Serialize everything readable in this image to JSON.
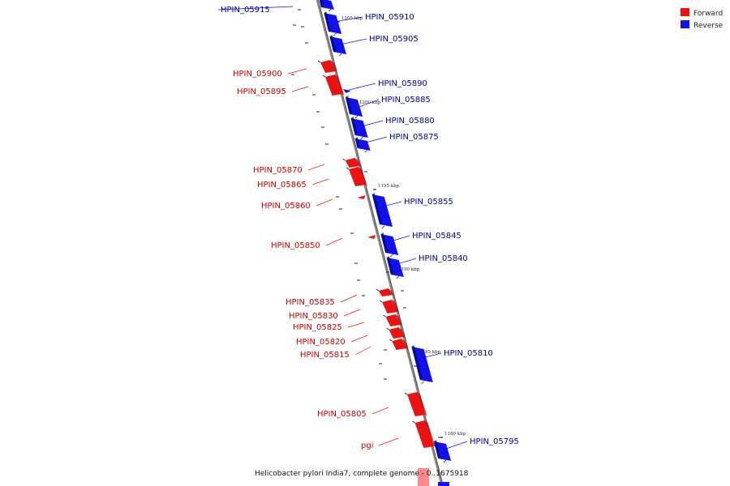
{
  "legend": [
    {
      "label": "Forward",
      "color": "#ee1111"
    },
    {
      "label": "Reverse",
      "color": "#1111ee"
    }
  ],
  "caption": "Helicobacter pylori India7, complete genome - 0..1675918",
  "colors": {
    "forward": "#ee1111",
    "reverse": "#1111ee",
    "backbone": "#888888",
    "forward_label": "#cc0000",
    "reverse_label": "#000099"
  },
  "ticks": [
    "1205 kbp",
    "1200 kbp",
    "1195 kbp",
    "1190 kbp",
    "1185 kbp",
    "1180 kbp"
  ],
  "genes": [
    {
      "name": "HPIN_05915",
      "strand": "reverse"
    },
    {
      "name": "HPIN_05910",
      "strand": "reverse"
    },
    {
      "name": "HPIN_05905",
      "strand": "reverse"
    },
    {
      "name": "HPIN_05900",
      "strand": "forward"
    },
    {
      "name": "HPIN_05895",
      "strand": "forward"
    },
    {
      "name": "HPIN_05890",
      "strand": "reverse"
    },
    {
      "name": "HPIN_05885",
      "strand": "reverse"
    },
    {
      "name": "HPIN_05880",
      "strand": "reverse"
    },
    {
      "name": "HPIN_05875",
      "strand": "reverse"
    },
    {
      "name": "HPIN_05870",
      "strand": "forward"
    },
    {
      "name": "HPIN_05865",
      "strand": "forward"
    },
    {
      "name": "HPIN_05860",
      "strand": "forward"
    },
    {
      "name": "HPIN_05855",
      "strand": "reverse"
    },
    {
      "name": "HPIN_05850",
      "strand": "forward"
    },
    {
      "name": "HPIN_05845",
      "strand": "reverse"
    },
    {
      "name": "HPIN_05840",
      "strand": "reverse"
    },
    {
      "name": "HPIN_05835",
      "strand": "forward"
    },
    {
      "name": "HPIN_05830",
      "strand": "forward"
    },
    {
      "name": "HPIN_05825",
      "strand": "forward"
    },
    {
      "name": "HPIN_05820",
      "strand": "forward"
    },
    {
      "name": "HPIN_05815",
      "strand": "forward"
    },
    {
      "name": "HPIN_05810",
      "strand": "reverse"
    },
    {
      "name": "HPIN_05805",
      "strand": "forward"
    },
    {
      "name": "pgi",
      "strand": "forward"
    },
    {
      "name": "HPIN_05795",
      "strand": "reverse"
    }
  ]
}
